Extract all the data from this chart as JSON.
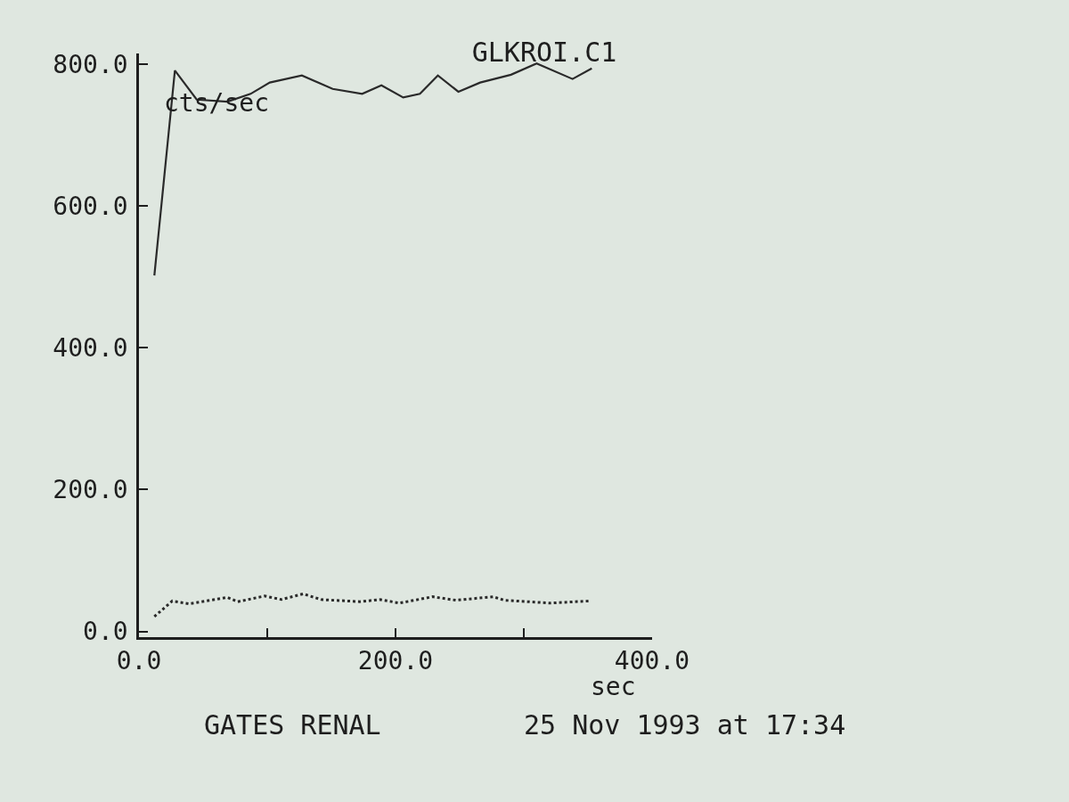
{
  "chart_data": {
    "type": "line",
    "title": "GLKROI.C1",
    "xlabel": "sec",
    "ylabel": "cts/sec",
    "annotations": [
      "GATES RENAL",
      "25 Nov 1993 at 17:34"
    ],
    "xlim": [
      0,
      400
    ],
    "ylim": [
      -8,
      815
    ],
    "xticks": [
      {
        "value": 0,
        "label": "0.0"
      },
      {
        "value": 100,
        "label": null
      },
      {
        "value": 200,
        "label": "200.0"
      },
      {
        "value": 300,
        "label": null
      },
      {
        "value": 400,
        "label": "400.0"
      }
    ],
    "yticks": [
      {
        "value": 0,
        "label": "0.0"
      },
      {
        "value": 200,
        "label": "200.0"
      },
      {
        "value": 400,
        "label": "400.0"
      },
      {
        "value": 600,
        "label": "600.0"
      },
      {
        "value": 800,
        "label": "800.0"
      }
    ],
    "series": [
      {
        "color": "#2a2a2a",
        "line_style": "solid",
        "x": [
          12,
          28,
          45,
          69,
          87,
          102,
          127,
          151,
          174,
          189,
          206,
          219,
          233,
          249,
          266,
          290,
          310,
          338,
          353
        ],
        "values": [
          502,
          791,
          750,
          747,
          758,
          774,
          784,
          765,
          758,
          770,
          753,
          758,
          784,
          761,
          774,
          785,
          801,
          779,
          794
        ]
      },
      {
        "color": "#2a2a2a",
        "line_style": "dotted",
        "x": [
          12,
          26,
          39,
          69,
          77,
          98,
          111,
          128,
          142,
          172,
          188,
          203,
          229,
          247,
          276,
          285,
          321,
          351
        ],
        "values": [
          21,
          43,
          39,
          48,
          42,
          50,
          45,
          53,
          45,
          42,
          45,
          40,
          49,
          44,
          49,
          44,
          40,
          43
        ]
      }
    ]
  }
}
